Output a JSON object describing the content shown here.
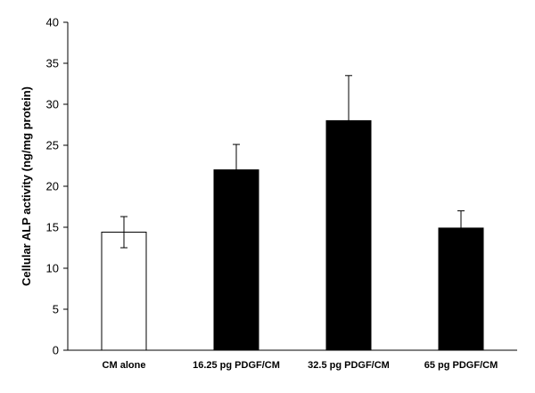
{
  "chart_data": {
    "type": "bar",
    "title": "",
    "xlabel": "",
    "ylabel": "Cellular ALP activity (ng/mg protein)",
    "ylim": [
      0,
      40
    ],
    "yticks": [
      0,
      5,
      10,
      15,
      20,
      25,
      30,
      35,
      40
    ],
    "categories": [
      "CM alone",
      "16.25 pg PDGF/CM",
      "32.5 pg PDGF/CM",
      "65 pg PDGF/CM"
    ],
    "values": [
      14.4,
      22.0,
      28.0,
      14.9
    ],
    "errors": [
      1.9,
      3.1,
      5.5,
      2.1
    ],
    "bar_fills": [
      "#ffffff",
      "#000000",
      "#000000",
      "#000000"
    ],
    "grid": false,
    "legend": "none"
  }
}
